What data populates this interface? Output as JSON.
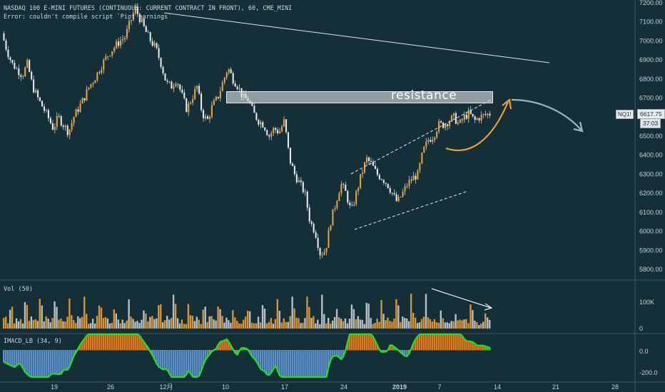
{
  "header": {
    "symbol_line": "NASDAQ 100 E-MINI FUTURES (CONTINUOUS: CURRENT CONTRACT IN FRONT), 60, CME_MINI",
    "error_line": "Error: couldn't compile script `Piot earnings`"
  },
  "price_axis": {
    "labels": [
      "7200.00",
      "7100.00",
      "7000.00",
      "6900.00",
      "6800.00",
      "6700.00",
      "6600.00",
      "6500.00",
      "6400.00",
      "6300.00",
      "6200.00",
      "6100.00",
      "6000.00",
      "5900.00",
      "5800.00"
    ],
    "symbol_tag": "NQ1!",
    "last_price": "6617.75",
    "countdown": "37:03"
  },
  "annotations": {
    "resistance_label": "resistance"
  },
  "volume_pane": {
    "title": "Vol (50)",
    "axis_labels": [
      "100K",
      "0"
    ]
  },
  "macd_pane": {
    "title": "IMACD_LB (34, 9)",
    "axis_labels": [
      "0.0",
      "-200.0"
    ]
  },
  "time_axis": {
    "labels": [
      "19",
      "26",
      "12月",
      "10",
      "17",
      "24",
      "2019",
      "7",
      "14",
      "21",
      "28"
    ]
  },
  "colors": {
    "background": "#142f38",
    "candle": "#f0a030",
    "wick": "#e8e8e8",
    "trendline": "#dfe6e8",
    "up_arrow": "#f0a030",
    "down_arrow": "#8fb8cc",
    "macd_green": "#22e022",
    "macd_orange": "#e07a18",
    "macd_blue": "#5a8fc8",
    "macd_gray": "#8d9a9c"
  },
  "chart_data": {
    "type": "line",
    "title": "NASDAQ 100 E-MINI FUTURES (CONTINUOUS: CURRENT CONTRACT IN FRONT), 60, CME_MINI",
    "ylim": [
      5750,
      7260
    ],
    "y_ticks": [
      7200,
      7100,
      7000,
      6900,
      6800,
      6700,
      6600,
      6500,
      6400,
      6300,
      6200,
      6100,
      6000,
      5900,
      5800
    ],
    "x_ticks": [
      "19",
      "26",
      "12月",
      "10",
      "17",
      "24",
      "2019",
      "7",
      "14",
      "21",
      "28"
    ],
    "series": [
      {
        "values": [
          7040,
          6950,
          6880,
          6850,
          6820,
          6880,
          6760,
          6700,
          6650,
          6600,
          6540,
          6600,
          6560,
          6520,
          6600,
          6650,
          6700,
          6760,
          6800,
          6850,
          6900,
          6940,
          6970,
          7000,
          7020,
          7100,
          7170,
          7110,
          7050,
          7000,
          6960,
          6880,
          6780,
          6760,
          6800,
          6720,
          6640,
          6700,
          6760,
          6620,
          6580,
          6660,
          6700,
          6780,
          6860,
          6800,
          6760,
          6700,
          6690,
          6620,
          6580,
          6560,
          6500,
          6540,
          6520,
          6580,
          6380,
          6300,
          6250,
          6200,
          6050,
          6000,
          5880,
          5900,
          6050,
          6150,
          6250,
          6200,
          6100,
          6200,
          6300,
          6380,
          6350,
          6300,
          6280,
          6250,
          6200,
          6150,
          6200,
          6250,
          6280,
          6300,
          6420,
          6480,
          6500,
          6560,
          6560,
          6580,
          6600,
          6560,
          6600,
          6620,
          6580,
          6600,
          6610,
          6617.75
        ]
      }
    ],
    "annotations": [
      "resistance"
    ]
  }
}
